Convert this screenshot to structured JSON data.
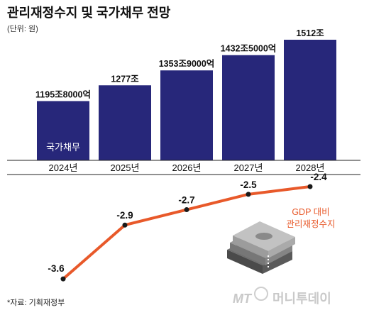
{
  "title": "관리재정수지 및 국가채무 전망",
  "unit": "(단위: 원)",
  "colors": {
    "bar": "#27277a",
    "line": "#e8592a",
    "point": "#1a1a1a"
  },
  "chart_data": [
    {
      "type": "bar",
      "categories": [
        "2024년",
        "2025년",
        "2026년",
        "2027년",
        "2028년"
      ],
      "values": [
        1195.8,
        1277,
        1353.9,
        1432.5,
        1512
      ],
      "value_labels": [
        "1195조8000억",
        "1277조",
        "1353조9000억",
        "1432조5000억",
        "1512조"
      ],
      "in_bar_label": "국가채무",
      "grid": false
    },
    {
      "type": "line",
      "x": [
        "2024년",
        "2025년",
        "2026년",
        "2027년",
        "2028년"
      ],
      "values": [
        -3.6,
        -2.9,
        -2.7,
        -2.5,
        -2.4
      ],
      "value_labels": [
        "-3.6",
        "-2.9",
        "-2.7",
        "-2.5",
        "-2.4"
      ],
      "annotation": [
        "GDP 대비",
        "관리재정수지"
      ],
      "grid": false
    }
  ],
  "source": "*자료: 기획재정부",
  "watermark": {
    "mark": "MT",
    "text": "머니투데이"
  },
  "icons": [
    "money-stack-icon",
    "mt-logo-icon"
  ]
}
